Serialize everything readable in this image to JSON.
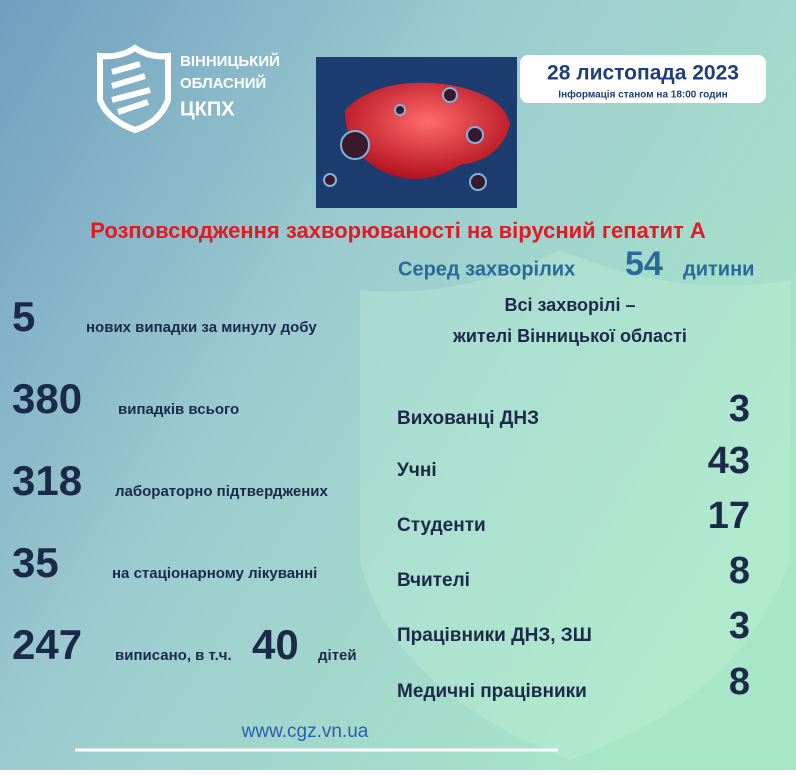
{
  "header": {
    "logo_lines": [
      "ВІННИЦЬКИЙ",
      "ОБЛАСНИЙ",
      "ЦКПХ"
    ],
    "date": "28 листопада 2023",
    "info": "Інформація станом на 18:00 годин"
  },
  "title": "Розповсюдження захворюваності на вірусний гепатит А",
  "children_summary": {
    "prefix": "Серед захворілих",
    "value": 54,
    "suffix": "дитини"
  },
  "note": [
    "Всі захворілі –",
    "жителі Вінницької області"
  ],
  "stats": [
    {
      "value": 5,
      "label": "нових випадки за минулу добу"
    },
    {
      "value": 380,
      "label": "випадків всього"
    },
    {
      "value": 318,
      "label": "лабораторно підтверджених"
    },
    {
      "value": 35,
      "label": "на стаціонарному лікуванні"
    }
  ],
  "discharged": {
    "value": 247,
    "label": "виписано, в т.ч.",
    "children_value": 40,
    "children_label": "дітей"
  },
  "categories": [
    {
      "label": "Вихованці ДНЗ",
      "value": 3
    },
    {
      "label": "Учні",
      "value": 43
    },
    {
      "label": "Студенти",
      "value": 17
    },
    {
      "label": "Вчителі",
      "value": 8
    },
    {
      "label": "Працівники ДНЗ, ЗШ",
      "value": 3
    },
    {
      "label": "Медичні працівники",
      "value": 8
    }
  ],
  "website": "www.cgz.vn.ua"
}
